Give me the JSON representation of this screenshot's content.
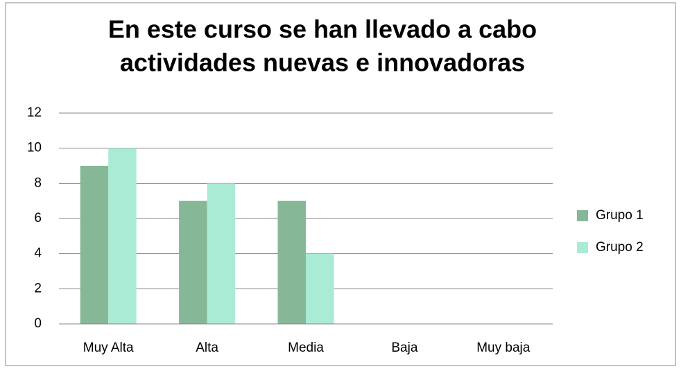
{
  "chart_data": {
    "type": "bar",
    "title": [
      "En este curso se han llevado a cabo",
      "actividades nuevas e innovadoras"
    ],
    "categories": [
      "Muy Alta",
      "Alta",
      "Media",
      "Baja",
      "Muy baja"
    ],
    "series": [
      {
        "name": "Grupo 1",
        "color": "#86b897",
        "values": [
          9,
          7,
          7,
          0,
          0
        ]
      },
      {
        "name": "Grupo 2",
        "color": "#aaebd5",
        "values": [
          10,
          8,
          4,
          0,
          0
        ]
      }
    ],
    "ylim": [
      0,
      12
    ],
    "yticks": [
      0,
      2,
      4,
      6,
      8,
      10,
      12
    ],
    "grid": true,
    "legend": "right"
  }
}
